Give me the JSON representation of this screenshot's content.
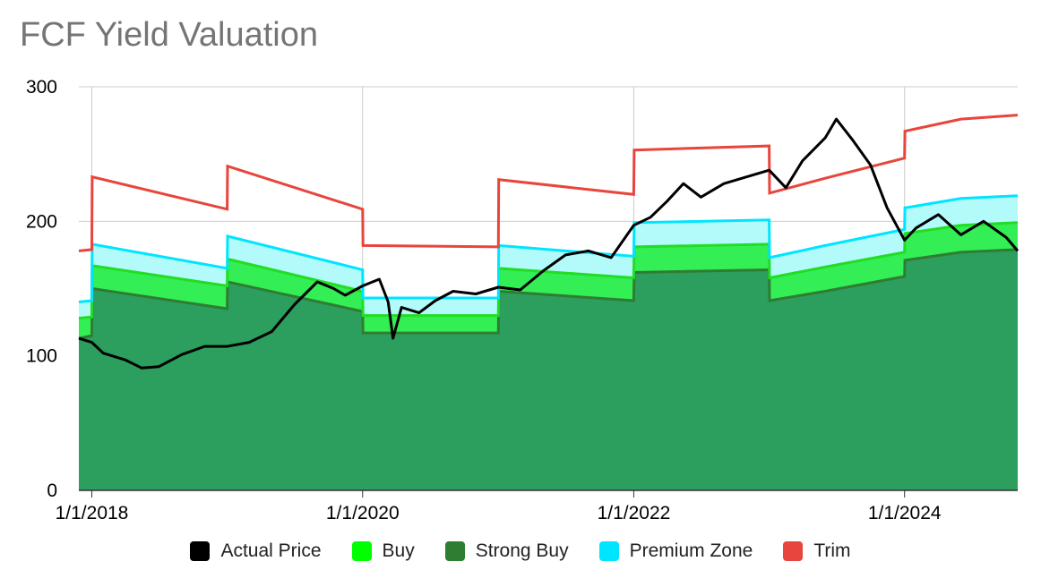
{
  "chart_data": {
    "type": "area",
    "title": "FCF Yield Valuation",
    "xlabel": "",
    "ylabel": "",
    "ylim": [
      0,
      300
    ],
    "y_ticks": [
      "0",
      "100",
      "200",
      "300"
    ],
    "x_ticks": [
      "1/1/2018",
      "1/1/2020",
      "1/1/2022",
      "1/1/2024"
    ],
    "x_range": [
      "2017-11-27",
      "2024-11-01"
    ],
    "grid": "vertical at x ticks, horizontal at y ticks",
    "legend_position": "bottom",
    "series": [
      {
        "name": "Strong Buy",
        "kind": "area",
        "color": "#2c9f5e",
        "line_color": "#2e7d32",
        "points": [
          [
            "2017-11-27",
            113
          ],
          [
            "2018-01-01",
            115
          ],
          [
            "2018-01-02",
            150
          ],
          [
            "2019-01-01",
            135
          ],
          [
            "2019-01-02",
            155
          ],
          [
            "2020-01-01",
            133
          ],
          [
            "2020-01-02",
            117
          ],
          [
            "2021-01-01",
            117
          ],
          [
            "2021-01-02",
            148
          ],
          [
            "2022-01-01",
            141
          ],
          [
            "2022-01-02",
            162
          ],
          [
            "2023-01-01",
            164
          ],
          [
            "2023-01-02",
            141
          ],
          [
            "2023-06-01",
            148
          ],
          [
            "2024-01-01",
            159
          ],
          [
            "2024-01-02",
            171
          ],
          [
            "2024-06-01",
            177
          ],
          [
            "2024-11-01",
            179
          ]
        ]
      },
      {
        "name": "Buy",
        "kind": "band",
        "color": "#33ee55",
        "line_color": "#22dd22",
        "points": [
          [
            "2017-11-27",
            128
          ],
          [
            "2018-01-01",
            129
          ],
          [
            "2018-01-02",
            167
          ],
          [
            "2019-01-01",
            152
          ],
          [
            "2019-01-02",
            172
          ],
          [
            "2020-01-01",
            148
          ],
          [
            "2020-01-02",
            130
          ],
          [
            "2021-01-01",
            130
          ],
          [
            "2021-01-02",
            165
          ],
          [
            "2022-01-01",
            158
          ],
          [
            "2022-01-02",
            181
          ],
          [
            "2023-01-01",
            183
          ],
          [
            "2023-01-02",
            158
          ],
          [
            "2023-06-01",
            166
          ],
          [
            "2024-01-01",
            177
          ],
          [
            "2024-01-02",
            191
          ],
          [
            "2024-06-01",
            197
          ],
          [
            "2024-11-01",
            199
          ]
        ]
      },
      {
        "name": "Premium Zone",
        "kind": "band",
        "color": "#b3fbfb",
        "line_color": "#00e5ff",
        "points": [
          [
            "2017-11-27",
            140
          ],
          [
            "2018-01-01",
            141
          ],
          [
            "2018-01-02",
            183
          ],
          [
            "2019-01-01",
            165
          ],
          [
            "2019-01-02",
            189
          ],
          [
            "2020-01-01",
            164
          ],
          [
            "2020-01-02",
            143
          ],
          [
            "2021-01-01",
            143
          ],
          [
            "2021-01-02",
            182
          ],
          [
            "2022-01-01",
            174
          ],
          [
            "2022-01-02",
            199
          ],
          [
            "2023-01-01",
            201
          ],
          [
            "2023-01-02",
            173
          ],
          [
            "2023-06-01",
            182
          ],
          [
            "2024-01-01",
            194
          ],
          [
            "2024-01-02",
            210
          ],
          [
            "2024-06-01",
            217
          ],
          [
            "2024-11-01",
            219
          ]
        ]
      },
      {
        "name": "Trim",
        "kind": "line",
        "color": "#e8453c",
        "points": [
          [
            "2017-11-27",
            178
          ],
          [
            "2018-01-01",
            179
          ],
          [
            "2018-01-02",
            233
          ],
          [
            "2019-01-01",
            209
          ],
          [
            "2019-01-02",
            241
          ],
          [
            "2020-01-01",
            209
          ],
          [
            "2020-01-02",
            182
          ],
          [
            "2021-01-01",
            181
          ],
          [
            "2021-01-02",
            231
          ],
          [
            "2022-01-01",
            220
          ],
          [
            "2022-01-02",
            253
          ],
          [
            "2023-01-01",
            256
          ],
          [
            "2023-01-02",
            221
          ],
          [
            "2023-06-01",
            232
          ],
          [
            "2024-01-01",
            247
          ],
          [
            "2024-01-02",
            267
          ],
          [
            "2024-06-01",
            276
          ],
          [
            "2024-11-01",
            279
          ]
        ]
      },
      {
        "name": "Actual Price",
        "kind": "line",
        "color": "#000000",
        "points": [
          [
            "2017-11-27",
            113
          ],
          [
            "2018-01-01",
            110
          ],
          [
            "2018-02-01",
            102
          ],
          [
            "2018-04-01",
            97
          ],
          [
            "2018-05-15",
            91
          ],
          [
            "2018-07-01",
            92
          ],
          [
            "2018-09-01",
            101
          ],
          [
            "2018-11-01",
            107
          ],
          [
            "2019-01-01",
            107
          ],
          [
            "2019-03-01",
            110
          ],
          [
            "2019-05-01",
            118
          ],
          [
            "2019-07-01",
            138
          ],
          [
            "2019-09-01",
            155
          ],
          [
            "2019-10-15",
            150
          ],
          [
            "2019-11-15",
            145
          ],
          [
            "2020-01-01",
            152
          ],
          [
            "2020-02-15",
            157
          ],
          [
            "2020-03-10",
            140
          ],
          [
            "2020-03-23",
            113
          ],
          [
            "2020-04-15",
            136
          ],
          [
            "2020-06-01",
            132
          ],
          [
            "2020-07-15",
            141
          ],
          [
            "2020-09-01",
            148
          ],
          [
            "2020-11-01",
            146
          ],
          [
            "2021-01-01",
            151
          ],
          [
            "2021-03-01",
            149
          ],
          [
            "2021-05-01",
            163
          ],
          [
            "2021-07-01",
            175
          ],
          [
            "2021-09-01",
            178
          ],
          [
            "2021-11-01",
            173
          ],
          [
            "2022-01-01",
            197
          ],
          [
            "2022-02-15",
            203
          ],
          [
            "2022-04-01",
            215
          ],
          [
            "2022-05-15",
            228
          ],
          [
            "2022-07-01",
            218
          ],
          [
            "2022-09-01",
            228
          ],
          [
            "2022-11-01",
            233
          ],
          [
            "2023-01-01",
            238
          ],
          [
            "2023-02-15",
            225
          ],
          [
            "2023-04-01",
            245
          ],
          [
            "2023-06-01",
            262
          ],
          [
            "2023-07-01",
            276
          ],
          [
            "2023-08-15",
            260
          ],
          [
            "2023-10-01",
            242
          ],
          [
            "2023-11-15",
            210
          ],
          [
            "2024-01-01",
            186
          ],
          [
            "2024-02-01",
            195
          ],
          [
            "2024-04-01",
            205
          ],
          [
            "2024-06-01",
            190
          ],
          [
            "2024-08-01",
            200
          ],
          [
            "2024-10-01",
            188
          ],
          [
            "2024-11-01",
            178
          ]
        ]
      }
    ]
  }
}
